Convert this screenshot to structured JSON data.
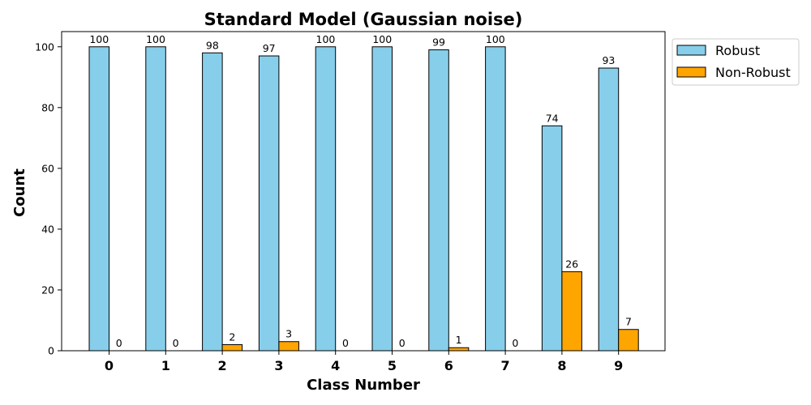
{
  "chart_data": {
    "type": "bar",
    "title": "Standard Model (Gaussian noise)",
    "xlabel": "Class Number",
    "ylabel": "Count",
    "categories": [
      "0",
      "1",
      "2",
      "3",
      "4",
      "5",
      "6",
      "7",
      "8",
      "9"
    ],
    "series": [
      {
        "name": "Robust",
        "color": "#87ceeb",
        "values": [
          100,
          100,
          98,
          97,
          100,
          100,
          99,
          100,
          74,
          93
        ]
      },
      {
        "name": "Non-Robust",
        "color": "#ffa500",
        "values": [
          0,
          0,
          2,
          3,
          0,
          0,
          1,
          0,
          26,
          7
        ]
      }
    ],
    "ylim": [
      0,
      105
    ],
    "yticks": [
      0,
      20,
      40,
      60,
      80,
      100
    ],
    "grid": false,
    "legend_position": "outside-top-right",
    "data_labels": true
  }
}
